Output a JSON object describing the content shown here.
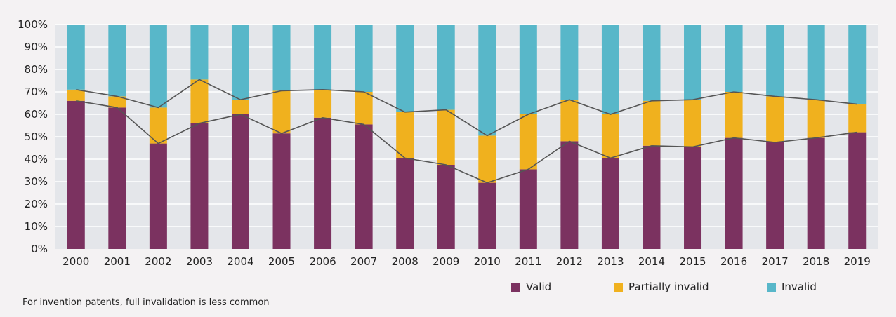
{
  "chart_data": {
    "type": "bar",
    "stacked": true,
    "normalized": true,
    "categories": [
      "2000",
      "2001",
      "2002",
      "2003",
      "2004",
      "2005",
      "2006",
      "2007",
      "2008",
      "2009",
      "2010",
      "2011",
      "2012",
      "2013",
      "2014",
      "2015",
      "2016",
      "2017",
      "2018",
      "2019"
    ],
    "series": [
      {
        "name": "Valid",
        "color": "#7b3260",
        "values": [
          66,
          63,
          47,
          56,
          60,
          51.5,
          58.5,
          55.5,
          40.5,
          37.5,
          29.5,
          35.5,
          48,
          40.5,
          46,
          45.5,
          49.5,
          47.5,
          49.5,
          52
        ]
      },
      {
        "name": "Partially invalid",
        "color": "#f0b11e",
        "values": [
          5,
          5,
          16,
          19.5,
          6.5,
          19,
          12.5,
          14.5,
          20.5,
          24.5,
          21,
          24.5,
          18.5,
          19.5,
          20,
          21,
          20.5,
          20.5,
          17,
          12.5
        ]
      },
      {
        "name": "Invalid",
        "color": "#58b7c9",
        "values": [
          29,
          32,
          37,
          24.5,
          33.5,
          29.5,
          29,
          30,
          39,
          38,
          49.5,
          40,
          33.5,
          40,
          34,
          33.5,
          30,
          32,
          33.5,
          35.5
        ]
      }
    ],
    "y_ticks": [
      "0%",
      "10%",
      "20%",
      "30%",
      "40%",
      "50%",
      "60%",
      "70%",
      "80%",
      "90%",
      "100%"
    ],
    "ylim": [
      0,
      100
    ],
    "grid": true,
    "connector_lines": true,
    "legend_position": "bottom-right",
    "colors": {
      "plot_background": "#e4e6ea",
      "gridline": "#ffffff",
      "connector": "#555555"
    }
  },
  "caption": "For invention patents, full invalidation is less common"
}
